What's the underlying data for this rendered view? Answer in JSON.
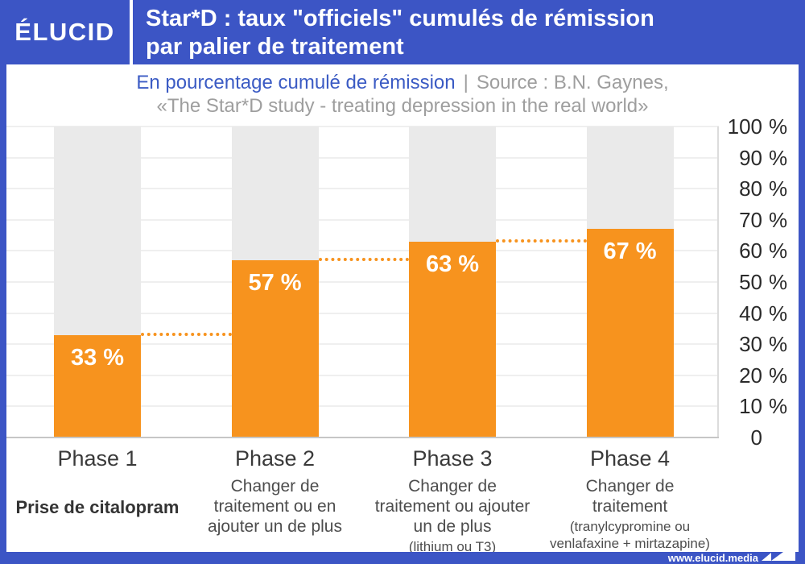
{
  "colors": {
    "brand_blue": "#3c55c5",
    "accent_orange": "#f7931e",
    "track_gray": "#eaeaea",
    "source_gray": "#9e9e9e",
    "metric_blue": "#3b5bc4",
    "text_dark": "#2a2a2a"
  },
  "header": {
    "logo": "ÉLUCID",
    "title_line1": "Star*D : taux \"officiels\" cumulés de rémission",
    "title_line2": "par palier de traitement"
  },
  "subtitle": {
    "metric": "En pourcentage cumulé de rémission",
    "separator": "|",
    "source_prefix": "Source : B.N. Gaynes,",
    "source_title": "«The Star*D study - treating depression in the real world»"
  },
  "footer": {
    "url": "www.elucid.media",
    "logo_arrow_icon": "flag-arrow-icon"
  },
  "chart_data": {
    "type": "bar",
    "title": "Star*D : taux \"officiels\" cumulés de rémission par palier de traitement",
    "ylabel": "En pourcentage cumulé de rémission",
    "ylim": [
      0,
      100
    ],
    "yticks": [
      0,
      10,
      20,
      30,
      40,
      50,
      60,
      70,
      80,
      90,
      100
    ],
    "ytick_labels": [
      "0",
      "10 %",
      "20 %",
      "30 %",
      "40 %",
      "50 %",
      "60 %",
      "70 %",
      "80 %",
      "90 %",
      "100 %"
    ],
    "grid": "horizontal",
    "legend": "none",
    "bar_color": "#f7931e",
    "track_color": "#eaeaea",
    "connector_style": "dotted",
    "categories": [
      "Phase 1",
      "Phase 2",
      "Phase 3",
      "Phase 4"
    ],
    "values": [
      33,
      57,
      63,
      67
    ],
    "value_labels": [
      "33 %",
      "57 %",
      "63 %",
      "67 %"
    ],
    "phases": [
      {
        "title": "Phase 1",
        "desc_lines": [
          "Prise de citalopram"
        ],
        "desc_bold": true,
        "note": ""
      },
      {
        "title": "Phase 2",
        "desc_lines": [
          "Changer de",
          "traitement ou en",
          "ajouter un de plus"
        ],
        "desc_bold": false,
        "note": ""
      },
      {
        "title": "Phase 3",
        "desc_lines": [
          "Changer de",
          "traitement ou ajouter",
          "un de plus"
        ],
        "desc_bold": false,
        "note": "(lithium ou T3)"
      },
      {
        "title": "Phase 4",
        "desc_lines": [
          "Changer de",
          "traitement"
        ],
        "desc_bold": false,
        "note": "(tranylcypromine ou venlafaxine + mirtazapine)"
      }
    ]
  }
}
